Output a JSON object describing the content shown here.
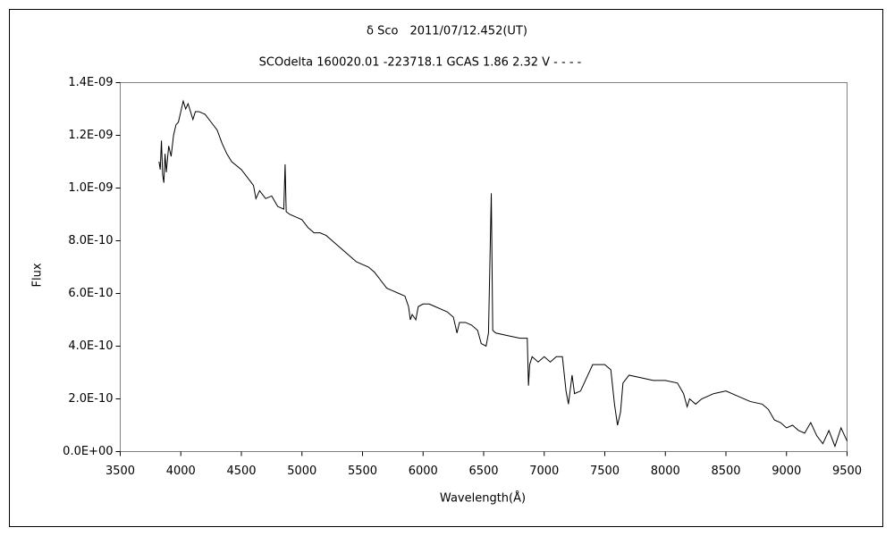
{
  "chart_data": {
    "type": "line",
    "title": "δ Sco　2011/07/12.452(UT)",
    "subtitle": "SCOdelta 160020.01 -223718.1 GCAS 1.86 2.32 V - - - -",
    "x_label": "Wavelength(Å)",
    "y_label": "Flux",
    "color": "#000000",
    "xlim": [
      3500,
      9500
    ],
    "xticks": [
      3500,
      4000,
      4500,
      5000,
      5500,
      6000,
      6500,
      7000,
      7500,
      8000,
      8500,
      9000,
      9500
    ],
    "ylim": [
      0,
      1.4e-09
    ],
    "yticks": [
      {
        "value": 0,
        "label": "0.0E+00"
      },
      {
        "value": 2e-10,
        "label": "2.0E-10"
      },
      {
        "value": 4e-10,
        "label": "4.0E-10"
      },
      {
        "value": 6e-10,
        "label": "6.0E-10"
      },
      {
        "value": 8e-10,
        "label": "8.0E-10"
      },
      {
        "value": 1e-09,
        "label": "1.0E-09"
      },
      {
        "value": 1.2e-09,
        "label": "1.2E-09"
      },
      {
        "value": 1.4e-09,
        "label": "1.4E-09"
      }
    ],
    "x": [
      3820,
      3830,
      3840,
      3850,
      3860,
      3870,
      3880,
      3900,
      3920,
      3940,
      3960,
      3980,
      4000,
      4020,
      4040,
      4060,
      4080,
      4100,
      4120,
      4150,
      4200,
      4250,
      4300,
      4340,
      4380,
      4420,
      4500,
      4550,
      4600,
      4620,
      4650,
      4700,
      4750,
      4800,
      4850,
      4861,
      4870,
      4900,
      4950,
      5000,
      5050,
      5100,
      5150,
      5200,
      5250,
      5300,
      5350,
      5400,
      5450,
      5500,
      5550,
      5600,
      5650,
      5700,
      5750,
      5800,
      5850,
      5880,
      5895,
      5910,
      5940,
      5960,
      6000,
      6050,
      6100,
      6150,
      6200,
      6250,
      6280,
      6300,
      6350,
      6400,
      6450,
      6480,
      6520,
      6540,
      6563,
      6575,
      6600,
      6700,
      6800,
      6860,
      6870,
      6880,
      6900,
      6950,
      7000,
      7050,
      7100,
      7150,
      7180,
      7200,
      7230,
      7250,
      7300,
      7330,
      7400,
      7500,
      7550,
      7580,
      7605,
      7630,
      7650,
      7700,
      7800,
      7900,
      8000,
      8100,
      8150,
      8180,
      8200,
      8250,
      8300,
      8400,
      8500,
      8600,
      8700,
      8800,
      8850,
      8900,
      8950,
      9000,
      9050,
      9100,
      9150,
      9200,
      9250,
      9300,
      9350,
      9400,
      9450,
      9500
    ],
    "values": [
      1.1e-09,
      1.07e-09,
      1.18e-09,
      1.05e-09,
      1.02e-09,
      1.13e-09,
      1.06e-09,
      1.16e-09,
      1.12e-09,
      1.2e-09,
      1.24e-09,
      1.25e-09,
      1.29e-09,
      1.33e-09,
      1.3e-09,
      1.32e-09,
      1.29e-09,
      1.26e-09,
      1.29e-09,
      1.29e-09,
      1.28e-09,
      1.25e-09,
      1.22e-09,
      1.17e-09,
      1.13e-09,
      1.1e-09,
      1.07e-09,
      1.04e-09,
      1.01e-09,
      9.6e-10,
      9.9e-10,
      9.6e-10,
      9.7e-10,
      9.3e-10,
      9.2e-10,
      1.09e-09,
      9.1e-10,
      9e-10,
      8.9e-10,
      8.8e-10,
      8.5e-10,
      8.3e-10,
      8.3e-10,
      8.2e-10,
      8e-10,
      7.8e-10,
      7.6e-10,
      7.4e-10,
      7.2e-10,
      7.1e-10,
      7e-10,
      6.8e-10,
      6.5e-10,
      6.2e-10,
      6.1e-10,
      6e-10,
      5.9e-10,
      5.5e-10,
      5e-10,
      5.2e-10,
      5e-10,
      5.5e-10,
      5.6e-10,
      5.6e-10,
      5.5e-10,
      5.4e-10,
      5.3e-10,
      5.1e-10,
      4.5e-10,
      4.9e-10,
      4.9e-10,
      4.8e-10,
      4.6e-10,
      4.1e-10,
      4e-10,
      4.5e-10,
      9.8e-10,
      4.6e-10,
      4.5e-10,
      4.4e-10,
      4.3e-10,
      4.3e-10,
      2.5e-10,
      3.3e-10,
      3.6e-10,
      3.4e-10,
      3.6e-10,
      3.4e-10,
      3.6e-10,
      3.6e-10,
      2.3e-10,
      1.8e-10,
      2.9e-10,
      2.2e-10,
      2.3e-10,
      2.6e-10,
      3.3e-10,
      3.3e-10,
      3.1e-10,
      1.8e-10,
      1e-10,
      1.5e-10,
      2.6e-10,
      2.9e-10,
      2.8e-10,
      2.7e-10,
      2.7e-10,
      2.6e-10,
      2.2e-10,
      1.7e-10,
      2e-10,
      1.8e-10,
      2e-10,
      2.2e-10,
      2.3e-10,
      2.1e-10,
      1.9e-10,
      1.8e-10,
      1.6e-10,
      1.2e-10,
      1.1e-10,
      9e-11,
      1e-10,
      8e-11,
      7e-11,
      1.1e-10,
      6e-11,
      3e-11,
      8e-11,
      2e-11,
      9e-11,
      4e-11
    ]
  }
}
